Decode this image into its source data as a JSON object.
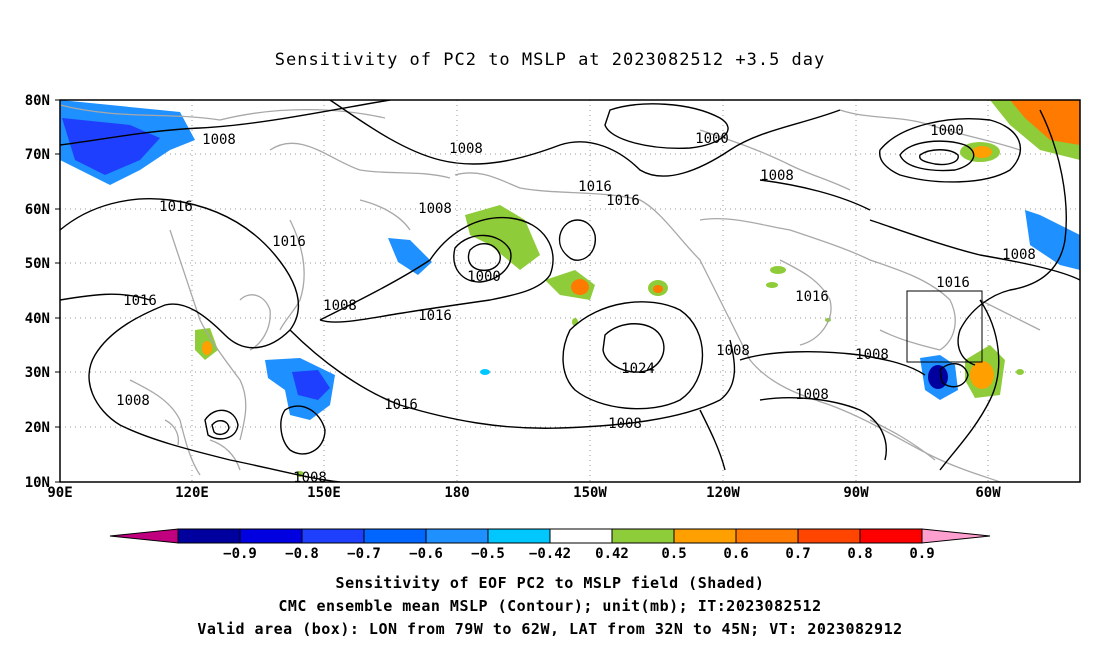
{
  "title": "Sensitivity of PC2 to MSLP at 2023082512 +3.5 day",
  "map": {
    "lat_labels": [
      "80N",
      "70N",
      "60N",
      "50N",
      "40N",
      "30N",
      "20N",
      "10N"
    ],
    "lon_labels": [
      "90E",
      "120E",
      "150E",
      "180",
      "150W",
      "120W",
      "90W",
      "60W"
    ],
    "contour_labels": [
      {
        "text": "1008"
      },
      {
        "text": "1008"
      },
      {
        "text": "1000"
      },
      {
        "text": "1008"
      },
      {
        "text": "1000"
      },
      {
        "text": "1016"
      },
      {
        "text": "1016"
      },
      {
        "text": "1016"
      },
      {
        "text": "1008"
      },
      {
        "text": "1016"
      },
      {
        "text": "1008"
      },
      {
        "text": "1000"
      },
      {
        "text": "1016"
      },
      {
        "text": "1008"
      },
      {
        "text": "1016"
      },
      {
        "text": "1016"
      },
      {
        "text": "1008"
      },
      {
        "text": "1016"
      },
      {
        "text": "1024"
      },
      {
        "text": "1008"
      },
      {
        "text": "1008"
      },
      {
        "text": "1008"
      },
      {
        "text": "1016"
      },
      {
        "text": "1008"
      },
      {
        "text": "1008"
      }
    ],
    "valid_box": {
      "lon_from": "79W",
      "lon_to": "62W",
      "lat_from": "32N",
      "lat_to": "45N"
    }
  },
  "colorbar": {
    "labels": [
      "-0.9",
      "-0.8",
      "-0.7",
      "-0.6",
      "-0.5",
      "-0.42",
      "0.42",
      "0.5",
      "0.6",
      "0.7",
      "0.8",
      "0.9"
    ],
    "colors": [
      "#c0007f",
      "#00009f",
      "#0000e0",
      "#1f3fff",
      "#0066ff",
      "#1e90ff",
      "#00c8ff",
      "#ffffff",
      "#8fcc3a",
      "#ff9f00",
      "#ff7a00",
      "#ff4500",
      "#ff0000",
      "#ff9fcf"
    ]
  },
  "footer": {
    "line1": "Sensitivity of EOF PC2 to MSLP field (Shaded)",
    "line2": "CMC ensemble mean MSLP (Contour); unit(mb); IT:2023082512",
    "line3": "Valid area (box): LON from 79W to 62W, LAT from 32N to 45N; VT: 2023082912"
  }
}
